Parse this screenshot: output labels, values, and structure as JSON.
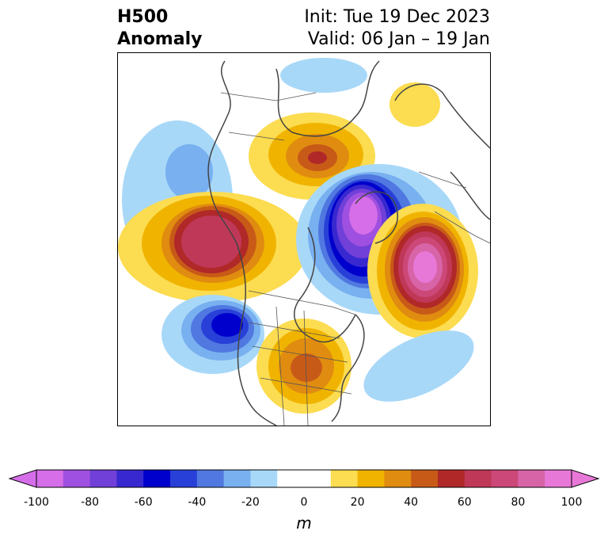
{
  "title": {
    "left_line1": "H500",
    "left_line2": "Anomaly",
    "right_line1": "Init: Tue 19 Dec 2023",
    "right_line2": "Valid: 06 Jan – 19 Jan"
  },
  "colorbar": {
    "unit": "m",
    "ticks": [
      "-100",
      "-80",
      "-60",
      "-40",
      "-20",
      "0",
      "20",
      "40",
      "60",
      "80",
      "100"
    ],
    "colors": [
      "#d56ee8",
      "#a050e0",
      "#7040d8",
      "#3828d0",
      "#0000cc",
      "#2840d8",
      "#5078e0",
      "#78b0f0",
      "#a8d8f8",
      "#ffffff",
      "#ffffff",
      "#fcdc50",
      "#f0b400",
      "#e08c10",
      "#c85a18",
      "#b02828",
      "#c03858",
      "#cc4878",
      "#d864a8",
      "#e878d8"
    ],
    "neg_extend_color": "#d56ee8",
    "pos_extend_color": "#e878d8"
  }
}
